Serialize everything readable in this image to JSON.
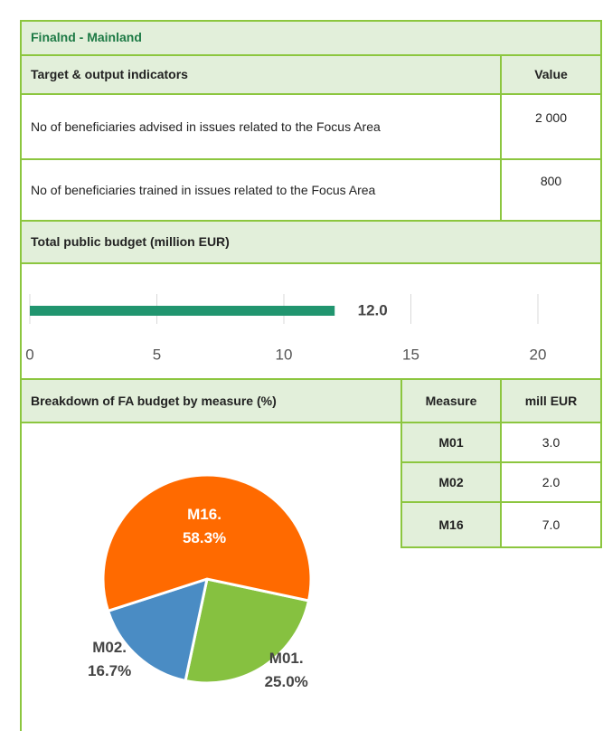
{
  "header": {
    "title": "Finalnd - Mainland"
  },
  "indicators": {
    "header": [
      "Target & output indicators",
      "Value"
    ],
    "rows": [
      [
        "No of beneficiaries advised in issues related to the Focus Area",
        "2 000"
      ],
      [
        "No of beneficiaries trained in issues related to the Focus Area",
        "800"
      ]
    ]
  },
  "budget": {
    "title": "Total public budget (million EUR)",
    "chart": {
      "type": "bar",
      "values": [
        12.0
      ],
      "value_labels": [
        "12.0"
      ],
      "color": "#21956f",
      "xlim": [
        0,
        20
      ],
      "xticks": [
        0,
        5,
        10,
        15,
        20
      ],
      "grid": true
    }
  },
  "breakdown": {
    "title": "Breakdown of FA budget by measure (%)",
    "table": {
      "header": [
        "Measure",
        "mill EUR"
      ],
      "rows": [
        [
          "M01",
          "3.0"
        ],
        [
          "M02",
          "2.0"
        ],
        [
          "M16",
          "7.0"
        ]
      ]
    },
    "chart": {
      "type": "pie",
      "labels": [
        "M01.",
        "M02.",
        "M16."
      ],
      "values": [
        25.0,
        16.7,
        58.3
      ],
      "value_labels": [
        "25.0%",
        "16.7%",
        "58.3%"
      ],
      "colors": [
        "#86c140",
        "#4a8cc4",
        "#ff6a00"
      ]
    }
  }
}
